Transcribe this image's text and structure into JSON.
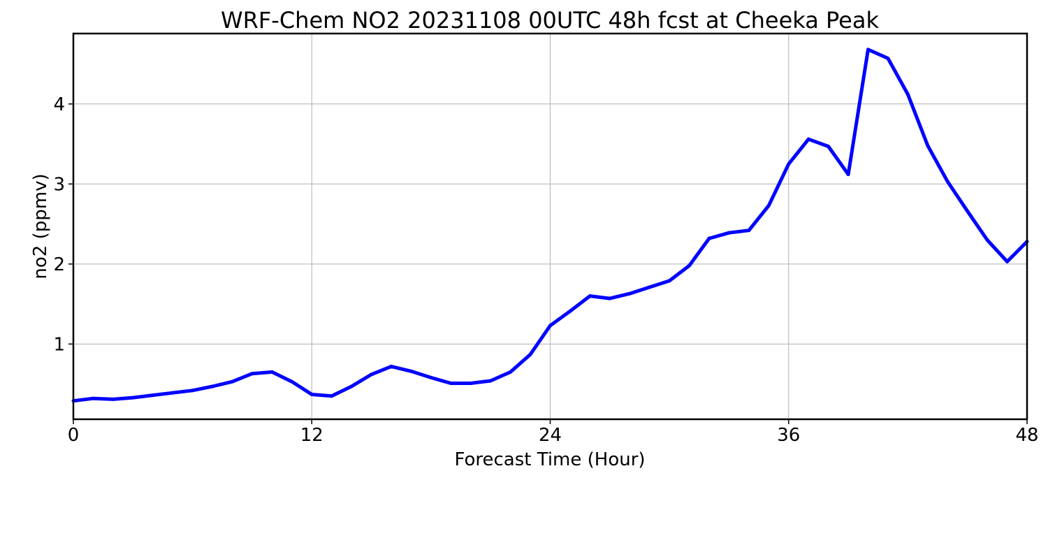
{
  "chart_data": {
    "type": "line",
    "title": "WRF-Chem NO2  20231108 00UTC 48h fcst at Cheeka Peak",
    "xlabel": "Forecast Time (Hour)",
    "ylabel": "no2  (ppmv)",
    "xlim": [
      0,
      48
    ],
    "ylim": [
      0.06,
      4.88
    ],
    "xticks": [
      0,
      12,
      24,
      36,
      48
    ],
    "yticks": [
      1,
      2,
      3,
      4
    ],
    "grid": true,
    "colors": {
      "series": "#0000ff"
    },
    "series": [
      {
        "x": [
          0,
          1,
          2,
          3,
          4,
          5,
          6,
          7,
          8,
          9,
          10,
          11,
          12,
          13,
          14,
          15,
          16,
          17,
          18,
          19,
          20,
          21,
          22,
          23,
          24,
          25,
          26,
          27,
          28,
          29,
          30,
          31,
          32,
          33,
          34,
          35,
          36,
          37,
          38,
          39,
          40,
          41,
          42,
          43,
          44,
          45,
          46,
          47,
          48
        ],
        "values": [
          0.29,
          0.32,
          0.31,
          0.33,
          0.36,
          0.39,
          0.42,
          0.47,
          0.53,
          0.63,
          0.65,
          0.53,
          0.37,
          0.35,
          0.47,
          0.62,
          0.72,
          0.66,
          0.58,
          0.51,
          0.51,
          0.54,
          0.65,
          0.87,
          1.23,
          1.41,
          1.6,
          1.57,
          1.63,
          1.71,
          1.79,
          1.98,
          2.32,
          2.39,
          2.42,
          2.73,
          3.25,
          3.56,
          3.47,
          3.12,
          4.68,
          4.57,
          4.12,
          3.48,
          3.03,
          2.66,
          2.3,
          2.03,
          2.28
        ]
      }
    ]
  }
}
